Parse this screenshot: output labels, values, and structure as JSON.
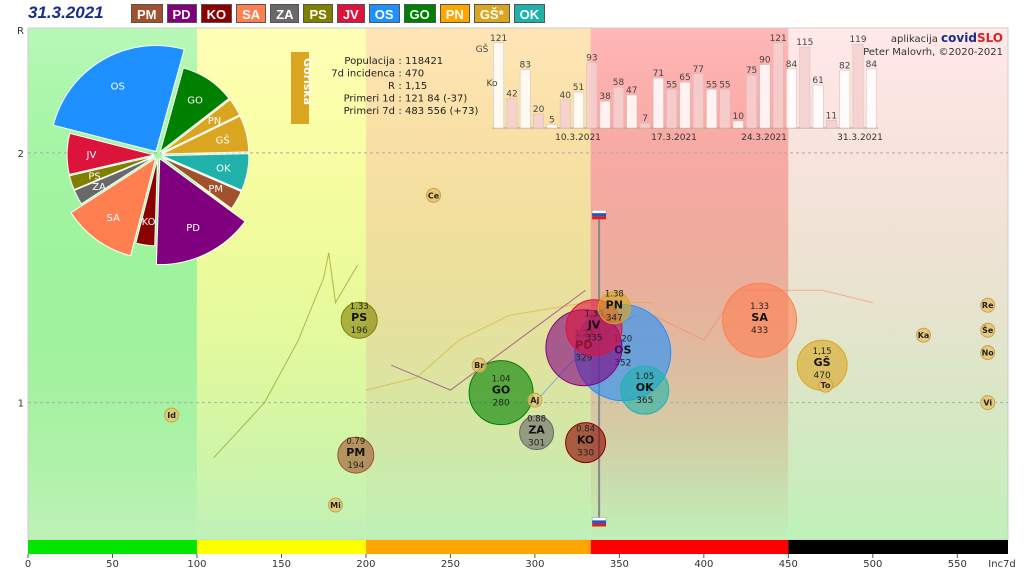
{
  "header": {
    "date": "31.3.2021",
    "tabs": [
      {
        "label": "PM",
        "color": "#a0522d"
      },
      {
        "label": "PD",
        "color": "#800080"
      },
      {
        "label": "KO",
        "color": "#8b0000"
      },
      {
        "label": "SA",
        "color": "#ff7f50"
      },
      {
        "label": "ZA",
        "color": "#696969"
      },
      {
        "label": "PS",
        "color": "#808000"
      },
      {
        "label": "JV",
        "color": "#dc143c"
      },
      {
        "label": "OS",
        "color": "#1e90ff"
      },
      {
        "label": "GO",
        "color": "#008000"
      },
      {
        "label": "PN",
        "color": "#ffa500"
      },
      {
        "label": "GŠ*",
        "color": "#daa520"
      },
      {
        "label": "OK",
        "color": "#20b2aa"
      }
    ]
  },
  "credits": {
    "line1_prefix": "aplikacija",
    "brand_covid": "covid",
    "brand_slo": "SLO",
    "line2": "Peter Malovrh, ©2020-2021"
  },
  "region_tag": "Goriška",
  "stats": [
    {
      "label": "Populacija",
      "value": "118421"
    },
    {
      "label": "7d incidenca",
      "value": "470"
    },
    {
      "label": "R",
      "value": "1,15"
    },
    {
      "label": "Primeri 1d",
      "value": "121 84 (-37)"
    },
    {
      "label": "Primeri 7d",
      "value": "483 556 (+73)"
    }
  ],
  "chart_data": {
    "type": "scatter",
    "xlabel": "Inc7d",
    "ylabel": "R",
    "xlim": [
      0,
      580
    ],
    "ylim": [
      0.45,
      2.5
    ],
    "xticks": [
      0,
      50,
      100,
      150,
      200,
      250,
      300,
      350,
      400,
      450,
      500,
      550
    ],
    "yticks": [
      1,
      2
    ],
    "ytick_labels": [
      "1",
      "2"
    ],
    "zones": [
      {
        "from": 0,
        "to": 100,
        "color": "#00e600"
      },
      {
        "from": 100,
        "to": 200,
        "color": "#ffff00"
      },
      {
        "from": 200,
        "to": 333,
        "color": "#ffa500"
      },
      {
        "from": 333,
        "to": 450,
        "color": "#ff0000"
      },
      {
        "from": 450,
        "to": 580,
        "color": "#000000"
      }
    ],
    "regions": [
      {
        "code": "PM",
        "r": 0.79,
        "inc": 194,
        "r_label": "0.79",
        "inc_label": "194",
        "color": "#a0522d"
      },
      {
        "code": "PS",
        "r": 1.33,
        "inc": 196,
        "r_label": "1.33",
        "inc_label": "196",
        "color": "#808000"
      },
      {
        "code": "GO",
        "r": 1.04,
        "inc": 280,
        "r_label": "1.04",
        "inc_label": "280",
        "color": "#008000"
      },
      {
        "code": "ZA",
        "r": 0.88,
        "inc": 301,
        "r_label": "0.88",
        "inc_label": "301",
        "color": "#696969"
      },
      {
        "code": "KO",
        "r": 0.84,
        "inc": 330,
        "r_label": "0.84",
        "inc_label": "330",
        "color": "#8b0000"
      },
      {
        "code": "PD",
        "r": 1.22,
        "inc": 329,
        "r_label": "1.22",
        "inc_label": "329",
        "color": "#800080"
      },
      {
        "code": "JV",
        "r": 1.3,
        "inc": 335,
        "r_label": "1.30",
        "inc_label": "335",
        "color": "#dc143c"
      },
      {
        "code": "PN",
        "r": 1.38,
        "inc": 347,
        "r_label": "1.38",
        "inc_label": "347",
        "color": "#daa520"
      },
      {
        "code": "OS",
        "r": 1.2,
        "inc": 352,
        "r_label": "1.20",
        "inc_label": "352",
        "color": "#1e90ff"
      },
      {
        "code": "OK",
        "r": 1.05,
        "inc": 365,
        "r_label": "1.05",
        "inc_label": "365",
        "color": "#20b2aa"
      },
      {
        "code": "SA",
        "r": 1.33,
        "inc": 433,
        "r_label": "1.33",
        "inc_label": "433",
        "color": "#ff7f50"
      },
      {
        "code": "GŠ",
        "r": 1.15,
        "inc": 470,
        "r_label": "1,15",
        "inc_label": "470",
        "color": "#daa520"
      }
    ],
    "towns": [
      {
        "code": "Id",
        "inc": 85,
        "r": 0.95
      },
      {
        "code": "Ce",
        "inc": 240,
        "r": 1.83
      },
      {
        "code": "Br",
        "inc": 267,
        "r": 1.15
      },
      {
        "code": "Aj",
        "inc": 300,
        "r": 1.01
      },
      {
        "code": "Mi",
        "inc": 182,
        "r": 0.59
      },
      {
        "code": "Ka",
        "inc": 530,
        "r": 1.27
      },
      {
        "code": "To",
        "inc": 472,
        "r": 1.07
      },
      {
        "code": "Re",
        "inc": 568,
        "r": 1.39
      },
      {
        "code": "Še",
        "inc": 568,
        "r": 1.29
      },
      {
        "code": "No",
        "inc": 568,
        "r": 1.2
      },
      {
        "code": "Vi",
        "inc": 568,
        "r": 1.0
      }
    ],
    "pie": [
      {
        "code": "OS",
        "share": 0.253
      },
      {
        "code": "GO",
        "share": 0.102
      },
      {
        "code": "PN",
        "share": 0.033
      },
      {
        "code": "GŠ",
        "share": 0.068
      },
      {
        "code": "OK",
        "share": 0.069
      },
      {
        "code": "PM",
        "share": 0.036
      },
      {
        "code": "PD",
        "share": 0.154
      },
      {
        "code": "KO",
        "share": 0.035
      },
      {
        "code": "SA",
        "share": 0.119
      },
      {
        "code": "ZA",
        "share": 0.028
      },
      {
        "code": "PS",
        "share": 0.027
      },
      {
        "code": "JV",
        "share": 0.076
      }
    ],
    "daily_bars": {
      "prefix_labels": [
        "GŠ",
        "Ko"
      ],
      "values": [
        121,
        42,
        83,
        20,
        5,
        40,
        51,
        93,
        38,
        58,
        47,
        7,
        71,
        55,
        65,
        77,
        55,
        55,
        10,
        75,
        90,
        121,
        84,
        115,
        61,
        11,
        82,
        119,
        84
      ],
      "date_labels": [
        "10.3.2021",
        "17.3.2021",
        "24.3.2021",
        "31.3.2021"
      ]
    }
  }
}
